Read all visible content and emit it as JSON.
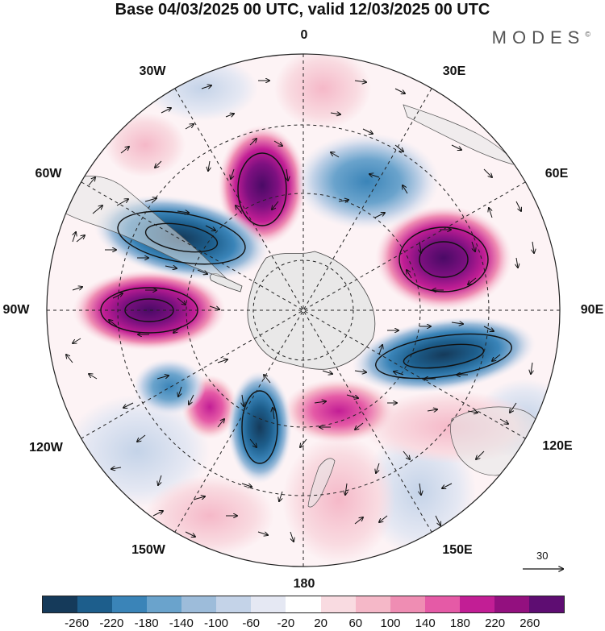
{
  "header": {
    "title": "Base 04/03/2025 00 UTC, valid 12/03/2025 00 UTC",
    "brand": "MODES",
    "brand_mark": "©"
  },
  "map": {
    "projection": "south-polar-stereographic",
    "longitude_labels": {
      "top": "0",
      "upper_right": "30E",
      "right_upper": "60E",
      "right": "90E",
      "right_lower": "120E",
      "lower_right": "150E",
      "bottom": "180",
      "lower_left": "150W",
      "left_lower": "120W",
      "left": "90W",
      "left_upper": "60W",
      "upper_left": "30W"
    },
    "grid": true,
    "land_fill": "#e5e5e5"
  },
  "vector_reference": {
    "value": "30"
  },
  "colorbar": {
    "colors": [
      "#153a5a",
      "#1d5e8c",
      "#3a84b8",
      "#6aa3cc",
      "#9dbcda",
      "#c4d3e8",
      "#e5e8f3",
      "#ffffff",
      "#f9dbe1",
      "#f5b8c8",
      "#ef8db3",
      "#e55aa6",
      "#c21e95",
      "#93107f",
      "#5e0d72"
    ],
    "labels": [
      "-260",
      "-220",
      "-180",
      "-140",
      "-100",
      "-60",
      "-20",
      "20",
      "60",
      "100",
      "140",
      "180",
      "220",
      "260"
    ]
  }
}
